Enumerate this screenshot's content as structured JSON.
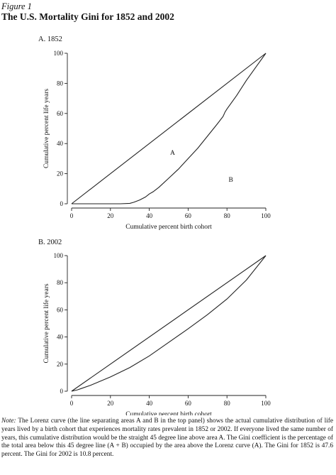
{
  "figure_label": "Figure 1",
  "title": "The U.S. Mortality Gini for 1852 and 2002",
  "panels": [
    {
      "label": "A. 1852"
    },
    {
      "label": "B. 2002"
    }
  ],
  "note": {
    "label": "Note:",
    "text": "The Lorenz curve (the line separating areas A and B in the top panel) shows the actual cumulative distribution of life years lived by a birth cohort that experiences mortality rates prevalent in 1852 or 2002. If everyone lived the same number of years, this cumulative distribution would be the straight 45 degree line above area A. The Gini coefficient is the percentage of the total area below this 45 degree line (A + B) occupied by the area above the Lorenz curve (A). The Gini for 1852 is 47.6 percent. The Gini for 2002 is 10.8 percent."
  },
  "chart_data": [
    {
      "type": "line",
      "panel": "A. 1852",
      "xlabel": "Cumulative percent birth cohort",
      "ylabel": "Cumulative percent life years",
      "xlim": [
        0,
        100
      ],
      "ylim": [
        0,
        100
      ],
      "xticks": [
        "0",
        "20",
        "40",
        "60",
        "80",
        "100"
      ],
      "yticks": [
        "0",
        "20",
        "40",
        "60",
        "80",
        "100"
      ],
      "series": [
        {
          "x": [
            0,
            100
          ],
          "y": [
            0,
            100
          ]
        },
        {
          "x": [
            0,
            5,
            10,
            15,
            20,
            25,
            30,
            32,
            35,
            38,
            40,
            42,
            45,
            50,
            55,
            60,
            65,
            70,
            75,
            78,
            79,
            80,
            85,
            90,
            95,
            100
          ],
          "y": [
            0,
            0,
            0,
            0,
            0,
            0,
            0.3,
            1,
            2.5,
            4.5,
            6.5,
            8,
            11,
            17,
            23,
            30,
            37,
            45,
            53,
            58,
            61,
            63,
            72,
            82,
            91,
            100
          ]
        }
      ],
      "annotations": [
        {
          "text": "A",
          "x": 52,
          "y": 34
        },
        {
          "text": "B",
          "x": 82,
          "y": 16
        }
      ],
      "grid": false
    },
    {
      "type": "line",
      "panel": "B. 2002",
      "xlabel": "Cumulative percent birth cohort",
      "ylabel": "Cumulative percent life years",
      "xlim": [
        0,
        100
      ],
      "ylim": [
        0,
        100
      ],
      "xticks": [
        "0",
        "20",
        "40",
        "60",
        "80",
        "100"
      ],
      "yticks": [
        "0",
        "20",
        "40",
        "60",
        "80",
        "100"
      ],
      "series": [
        {
          "x": [
            0,
            100
          ],
          "y": [
            0,
            100
          ]
        },
        {
          "x": [
            0,
            1,
            3,
            5,
            10,
            20,
            30,
            40,
            50,
            60,
            70,
            80,
            90,
            100
          ],
          "y": [
            0,
            0.3,
            1,
            2,
            4.5,
            10.5,
            17.5,
            26,
            36,
            46,
            56.5,
            68,
            82,
            100
          ]
        }
      ],
      "annotations": [],
      "grid": false
    }
  ]
}
